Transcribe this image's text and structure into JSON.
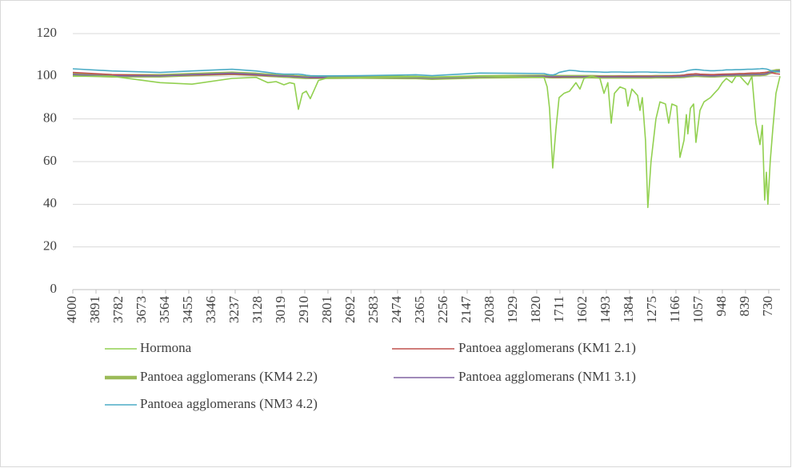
{
  "chart_data": {
    "type": "line",
    "x": [
      4000,
      3816,
      3590,
      3440,
      3252,
      3139,
      3083,
      3045,
      3008,
      2981,
      2959,
      2940,
      2921,
      2903,
      2884,
      2846,
      2801,
      2651,
      2388,
      2312,
      2087,
      1786,
      1771,
      1760,
      1745,
      1730,
      1715,
      1692,
      1666,
      1636,
      1617,
      1598,
      1561,
      1523,
      1504,
      1486,
      1470,
      1455,
      1429,
      1403,
      1392,
      1373,
      1346,
      1335,
      1324,
      1309,
      1298,
      1283,
      1260,
      1241,
      1215,
      1200,
      1185,
      1162,
      1147,
      1128,
      1117,
      1110,
      1098,
      1083,
      1072,
      1053,
      1034,
      1004,
      986,
      967,
      948,
      929,
      903,
      884,
      865,
      847,
      828,
      809,
      790,
      771,
      760,
      749,
      741,
      734,
      723,
      711,
      696,
      677
    ],
    "xlim": [
      4000,
      677
    ],
    "xticks": [
      4000,
      3891,
      3782,
      3673,
      3564,
      3455,
      3346,
      3237,
      3128,
      3019,
      2910,
      2801,
      2692,
      2583,
      2474,
      2365,
      2256,
      2147,
      2038,
      1929,
      1820,
      1711,
      1602,
      1493,
      1384,
      1275,
      1166,
      1057,
      948,
      839,
      730
    ],
    "ylim": [
      0,
      120
    ],
    "yticks": [
      0,
      20,
      40,
      60,
      80,
      100,
      120
    ],
    "grid": true,
    "legend": "bottom",
    "series": [
      {
        "name": "Hormona",
        "color": "#92d050",
        "width": 1.6,
        "values": [
          100,
          100,
          97,
          96.3,
          99,
          99.5,
          97,
          97.5,
          96,
          97,
          96.5,
          84.5,
          92,
          93,
          89.5,
          98,
          99.3,
          99.5,
          99.7,
          99.5,
          100,
          99.5,
          95,
          85,
          57,
          75,
          90,
          92,
          93,
          97,
          94,
          99,
          100,
          99,
          92,
          97,
          78,
          92,
          95,
          94,
          86,
          94,
          91,
          84,
          90,
          70,
          38.5,
          60,
          80,
          88,
          87,
          78,
          87,
          86,
          62,
          70,
          82,
          73,
          85,
          87,
          69,
          84,
          88,
          90,
          92,
          94,
          97,
          99,
          97,
          100,
          100,
          98,
          96,
          100,
          78,
          68,
          77,
          42,
          55,
          40,
          60,
          75,
          92,
          100
        ]
      },
      {
        "name": "Pantoea agglomerans (KM1 2.1)",
        "color": "#c0504d",
        "width": 1.6,
        "values": [
          101.8,
          100.8,
          100.3,
          100.6,
          101,
          100.6,
          100.3,
          100.2,
          100.1,
          100,
          99.9,
          99.8,
          99.6,
          99.5,
          99.3,
          99.3,
          99.4,
          99.5,
          99.6,
          99.4,
          99.8,
          99.9,
          99.8,
          99.7,
          99.6,
          99.6,
          99.6,
          99.7,
          99.7,
          99.8,
          99.8,
          99.8,
          99.9,
          99.9,
          99.9,
          99.9,
          99.9,
          99.9,
          100,
          100,
          100,
          100,
          100,
          100,
          100,
          100,
          100,
          100,
          100,
          100,
          100.1,
          100.1,
          100.2,
          100.3,
          100.4,
          100.6,
          100.8,
          100.9,
          101,
          101.1,
          101.2,
          101,
          100.9,
          100.8,
          100.8,
          100.9,
          101,
          101,
          101.1,
          101.2,
          101.3,
          101.3,
          101.4,
          101.5,
          101.5,
          101.6,
          101.7,
          101.8,
          101.9,
          102,
          101.8,
          101.5,
          101.2,
          101
        ]
      },
      {
        "name": "Pantoea agglomerans (KM4 2.2)",
        "color": "#9bbb59",
        "width": 4.5,
        "values": [
          100.8,
          100.2,
          100.2,
          100.8,
          101.4,
          100.9,
          100.5,
          100.3,
          100.1,
          100,
          99.8,
          99.7,
          99.6,
          99.5,
          99.5,
          99.5,
          99.5,
          99.6,
          99.4,
          99.1,
          99.7,
          100,
          99.9,
          99.8,
          99.8,
          99.8,
          99.8,
          99.8,
          99.8,
          99.8,
          99.8,
          99.8,
          99.8,
          99.7,
          99.7,
          99.7,
          99.7,
          99.7,
          99.7,
          99.7,
          99.7,
          99.7,
          99.7,
          99.7,
          99.7,
          99.7,
          99.7,
          99.7,
          99.8,
          99.8,
          99.8,
          99.8,
          99.8,
          99.9,
          99.9,
          100,
          100.1,
          100.2,
          100.3,
          100.4,
          100.5,
          100.4,
          100.3,
          100.2,
          100.2,
          100.3,
          100.4,
          100.5,
          100.5,
          100.6,
          100.6,
          100.6,
          100.7,
          100.7,
          100.8,
          100.8,
          100.9,
          101,
          101.2,
          101.5,
          101.9,
          102.2,
          102.5,
          102.6
        ]
      },
      {
        "name": "Pantoea agglomerans (NM1 3.1)",
        "color": "#8064a2",
        "width": 1.6,
        "values": [
          100.8,
          100.2,
          100.2,
          100.8,
          101.4,
          100.9,
          100.5,
          100.3,
          100.1,
          100,
          99.8,
          99.7,
          99.6,
          99.5,
          99.5,
          99.5,
          99.5,
          99.6,
          99.4,
          99.1,
          99.7,
          100,
          99.9,
          99.8,
          99.8,
          99.8,
          99.8,
          99.8,
          99.8,
          99.8,
          99.8,
          99.8,
          99.8,
          99.7,
          99.7,
          99.7,
          99.7,
          99.7,
          99.7,
          99.7,
          99.7,
          99.7,
          99.7,
          99.7,
          99.7,
          99.7,
          99.7,
          99.7,
          99.8,
          99.8,
          99.8,
          99.8,
          99.8,
          99.9,
          99.9,
          100,
          100.1,
          100.2,
          100.3,
          100.4,
          100.5,
          100.4,
          100.3,
          100.2,
          100.2,
          100.3,
          100.4,
          100.5,
          100.5,
          100.6,
          100.6,
          100.6,
          100.7,
          100.7,
          100.8,
          100.8,
          100.9,
          101,
          101.2,
          101.5,
          101.9,
          102.2,
          102.5,
          102.6
        ]
      },
      {
        "name": "Pantoea agglomerans (NM3 4.2)",
        "color": "#4bacc6",
        "width": 1.6,
        "values": [
          103.5,
          102.5,
          101.8,
          102.5,
          103.3,
          102.5,
          101.8,
          101.3,
          101,
          101,
          101,
          101,
          100.8,
          100.5,
          100.3,
          100.2,
          100.2,
          100.3,
          100.7,
          100.3,
          101.5,
          101.3,
          100.9,
          100.7,
          100.6,
          101,
          101.8,
          102.3,
          102.8,
          102.6,
          102.3,
          102.2,
          102.1,
          102,
          101.9,
          101.9,
          102,
          102,
          102,
          101.9,
          101.9,
          101.9,
          102,
          102,
          102,
          102,
          102,
          101.9,
          101.9,
          101.8,
          101.8,
          101.8,
          101.8,
          101.8,
          101.9,
          102.2,
          102.5,
          102.7,
          102.9,
          103.1,
          103.2,
          103,
          102.8,
          102.6,
          102.6,
          102.7,
          102.8,
          103,
          103,
          103.1,
          103.1,
          103.2,
          103.3,
          103.3,
          103.4,
          103.5,
          103.6,
          103.5,
          103.4,
          103.2,
          102.8,
          102.5,
          102.2,
          102.0
        ]
      }
    ]
  }
}
